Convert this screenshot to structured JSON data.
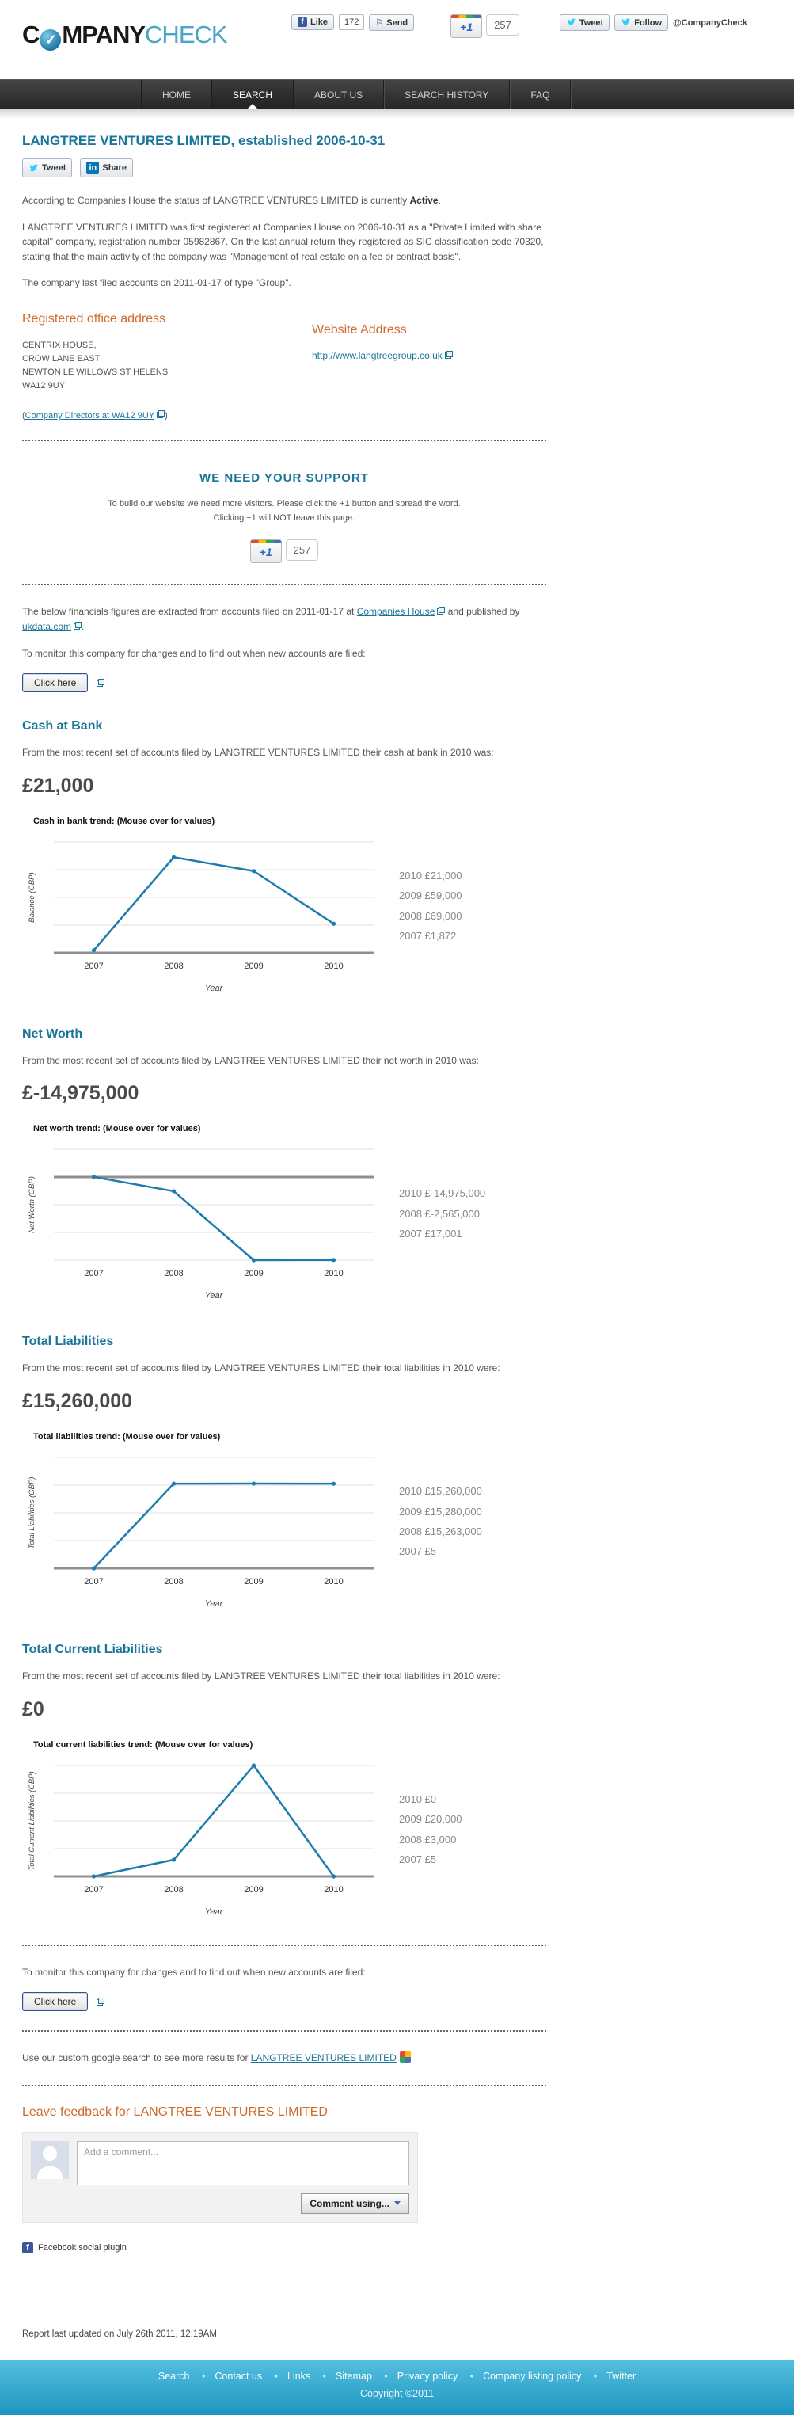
{
  "header": {
    "logo": {
      "first_letter": "C",
      "check_glyph": "✓",
      "rest": "MPANY",
      "accent": "CHECK"
    },
    "like_label": "Like",
    "like_count": "172",
    "send_label": "Send",
    "plusone_label": "+1",
    "plusone_count": "257",
    "tweet_label": "Tweet",
    "follow_label": "Follow",
    "twitter_handle": "@CompanyCheck"
  },
  "nav": {
    "items": [
      "HOME",
      "SEARCH",
      "ABOUT US",
      "SEARCH HISTORY",
      "FAQ"
    ]
  },
  "intro": {
    "title": "LANGTREE VENTURES LIMITED, established 2006-10-31",
    "tweet_label": "Tweet",
    "linkedin_icon": "in",
    "share_label": "Share",
    "status_before": "According to Companies House the status of LANGTREE VENTURES LIMITED is currently ",
    "status_value": "Active",
    "status_after": ".",
    "registered_paragraph": "LANGTREE VENTURES LIMITED was first registered at Companies House on 2006-10-31 as a \"Private Limited with share capital\" company, registration number 05982867. On the last annual return they registered as SIC classification code 70320, stating that the main activity of the company was \"Management of real estate on a fee or contract basis\".",
    "accounts_paragraph": "The company last filed accounts on 2011-01-17 of type \"Group\"."
  },
  "registered_office": {
    "heading": "Registered office address",
    "lines": [
      "CENTRIX HOUSE,",
      "CROW LANE EAST",
      "NEWTON LE WILLOWS ST HELENS",
      "WA12 9UY"
    ],
    "directors_prefix": "(",
    "directors_link": "Company Directors at WA12 9UY",
    "directors_suffix": ")"
  },
  "website": {
    "heading": "Website Address",
    "url": "http://www.langtreegroup.co.uk"
  },
  "support": {
    "heading": "WE NEED YOUR SUPPORT",
    "line1": "To build our website we need more visitors. Please click the +1 button and spread the word.",
    "line2": "Clicking +1 will NOT leave this page.",
    "plusone_label": "+1",
    "plusone_count": "257"
  },
  "financials_note": {
    "before": "The below financials figures are extracted from accounts filed on 2011-01-17 at ",
    "link1": "Companies House",
    "middle": " and published by ",
    "link2": "ukdata.com",
    "after": "."
  },
  "monitor": {
    "text": "To monitor this company for changes and to find out when new accounts are filed:",
    "button_label": "Click here"
  },
  "sections": {
    "cash": {
      "heading": "Cash at Bank",
      "intro": "From the most recent set of accounts filed by LANGTREE VENTURES LIMITED their cash at bank in 2010 was:",
      "value": "£21,000"
    },
    "net_worth": {
      "heading": "Net Worth",
      "intro": "From the most recent set of accounts filed by LANGTREE VENTURES LIMITED their net worth in 2010 was:",
      "value": "£-14,975,000"
    },
    "total_liabilities": {
      "heading": "Total Liabilities",
      "intro": "From the most recent set of accounts filed by LANGTREE VENTURES LIMITED their total liabilities in 2010 were:",
      "value": "£15,260,000"
    },
    "total_current_liabilities": {
      "heading": "Total Current Liabilities",
      "intro": "From the most recent set of accounts filed by LANGTREE VENTURES LIMITED their total liabilities in 2010 were:",
      "value": "£0"
    }
  },
  "chart_data": [
    {
      "type": "line",
      "title": "Cash in bank trend: (Mouse over for values)",
      "xlabel": "Year",
      "ylabel": "Balance (GBP)",
      "x": [
        "2007",
        "2008",
        "2009",
        "2010"
      ],
      "values": [
        1872,
        69000,
        59000,
        21000
      ],
      "ylim": [
        0,
        80000
      ],
      "grid_step": 20000,
      "axis_at": 0,
      "value_labels": [
        "2010 £21,000",
        "2009 £59,000",
        "2008 £69,000",
        "2007 £1,872"
      ]
    },
    {
      "type": "line",
      "title": "Net worth trend: (Mouse over for values)",
      "xlabel": "Year",
      "ylabel": "Net Worth (GBP)",
      "x": [
        "2007",
        "2008",
        "2009",
        "2010"
      ],
      "values": [
        17001,
        -2565000,
        -15000000,
        -14975000
      ],
      "ylim": [
        -15000000,
        5000000
      ],
      "grid_step": 5000000,
      "axis_at": 0,
      "value_labels": [
        "2010 £-14,975,000",
        "2008 £-2,565,000",
        "2007 £17,001"
      ]
    },
    {
      "type": "line",
      "title": "Total liabilities trend: (Mouse over for values)",
      "xlabel": "Year",
      "ylabel": "Total Liabilities (GBP)",
      "x": [
        "2007",
        "2008",
        "2009",
        "2010"
      ],
      "values": [
        5,
        15263000,
        15280000,
        15260000
      ],
      "ylim": [
        0,
        20000000
      ],
      "grid_step": 5000000,
      "axis_at": 0,
      "value_labels": [
        "2010 £15,260,000",
        "2009 £15,280,000",
        "2008 £15,263,000",
        "2007 £5"
      ]
    },
    {
      "type": "line",
      "title": "Total current liabilities trend: (Mouse over for values)",
      "xlabel": "Year",
      "ylabel": "Total Current Liabilities (GBP)",
      "x": [
        "2007",
        "2008",
        "2009",
        "2010"
      ],
      "values": [
        5,
        3000,
        20000,
        0
      ],
      "ylim": [
        0,
        20000
      ],
      "grid_step": 5000,
      "axis_at": 0,
      "value_labels": [
        "2010 £0",
        "2009 £20,000",
        "2008 £3,000",
        "2007 £5"
      ]
    }
  ],
  "google_search": {
    "before": "Use our custom google search to see more results for ",
    "link": "LANGTREE VENTURES LIMITED"
  },
  "feedback": {
    "heading": "Leave feedback for LANGTREE VENTURES LIMITED",
    "comment_placeholder": "Add a comment...",
    "comment_using_label": "Comment using...",
    "plugin_label": "Facebook social plugin"
  },
  "footer": {
    "report_line": "Report last updated on July 26th 2011, 12:19AM",
    "links": [
      "Search",
      "Contact us",
      "Links",
      "Sitemap",
      "Privacy policy",
      "Company listing policy",
      "Twitter"
    ],
    "copyright": "Copyright ©2011"
  },
  "colors": {
    "accent_blue": "#1b7599",
    "accent_orange": "#cf6a2a",
    "chart_line": "#1c7cae",
    "footer_top": "#55bfdf",
    "footer_bottom": "#1d96c2"
  }
}
